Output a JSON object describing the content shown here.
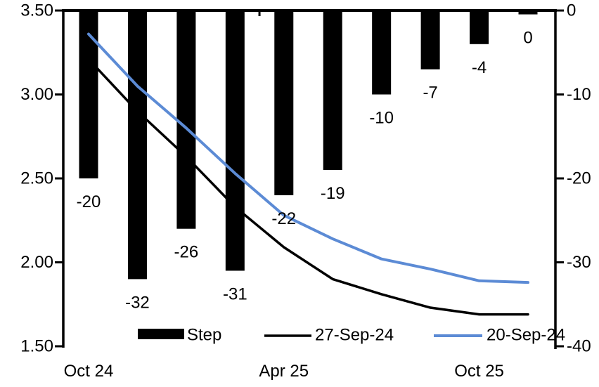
{
  "chart_data": {
    "type": "combo-bar-line",
    "title": "",
    "categories": [
      "Oct 24",
      "",
      "",
      "",
      "Apr 25",
      "",
      "",
      "",
      "Oct 25",
      ""
    ],
    "series": [
      {
        "name": "Step",
        "type": "bar",
        "axis": "right",
        "color": "#000000",
        "values": [
          -20,
          -32,
          -26,
          -31,
          -22,
          -19,
          -10,
          -7,
          -4,
          0
        ],
        "data_labels": [
          "-20",
          "-32",
          "-26",
          "-31",
          "-22",
          "-19",
          "-10",
          "-7",
          "-4",
          "0"
        ]
      },
      {
        "name": "27-Sep-24",
        "type": "line",
        "axis": "left",
        "color": "#000000",
        "values": [
          3.21,
          2.9,
          2.63,
          2.33,
          2.09,
          1.9,
          1.81,
          1.73,
          1.69,
          1.69
        ]
      },
      {
        "name": "20-Sep-24",
        "type": "line",
        "axis": "left",
        "color": "#5C8BD5",
        "values": [
          3.36,
          3.05,
          2.8,
          2.53,
          2.28,
          2.14,
          2.02,
          1.96,
          1.89,
          1.88
        ]
      }
    ],
    "axes": {
      "left": {
        "min": 1.5,
        "max": 3.5,
        "tick_labels": [
          "3.50",
          "3.00",
          "2.50",
          "2.00",
          "1.50"
        ]
      },
      "right": {
        "min": -40,
        "max": 0,
        "tick_labels": [
          "0",
          "-10",
          "-20",
          "-30",
          "-40"
        ]
      }
    },
    "x_tick_labels_visible": [
      "Oct 24",
      "Apr 25",
      "Oct 25"
    ],
    "legend": {
      "position": "bottom",
      "entries": [
        {
          "label": "Step",
          "marker": "bar",
          "color": "#000000"
        },
        {
          "label": "27-Sep-24",
          "marker": "line",
          "color": "#000000"
        },
        {
          "label": "20-Sep-24",
          "marker": "line",
          "color": "#5C8BD5"
        }
      ]
    },
    "grid": false,
    "background": "#ffffff"
  }
}
